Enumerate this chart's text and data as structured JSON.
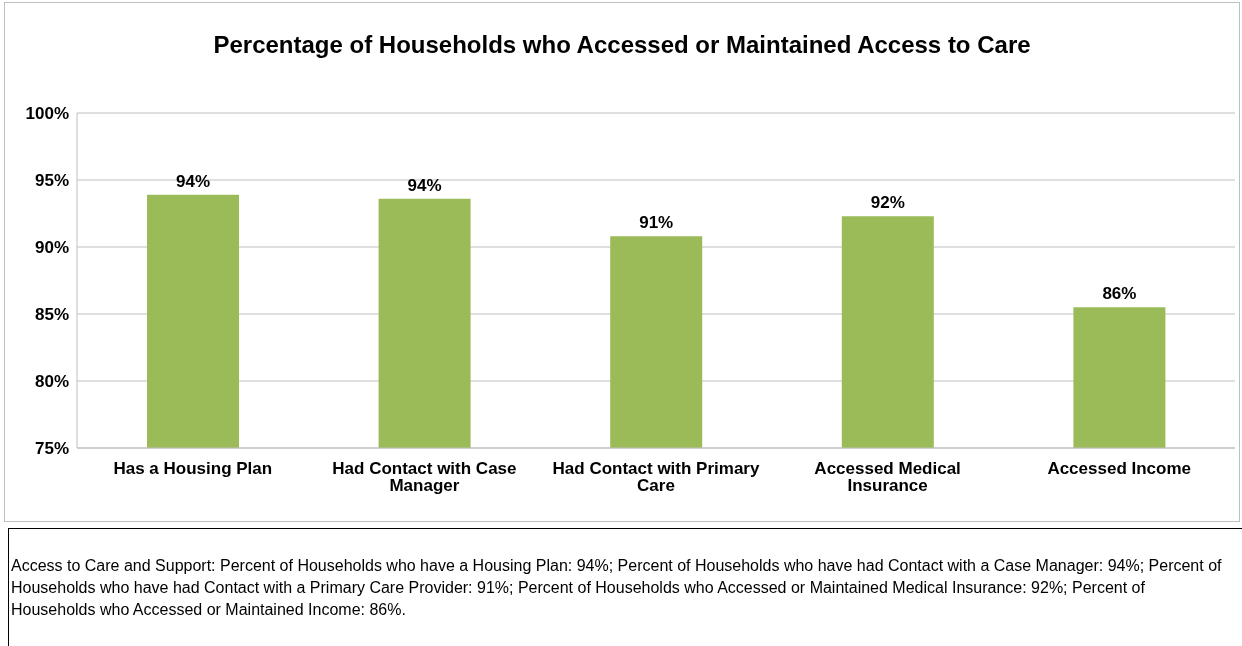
{
  "chart_data": {
    "type": "bar",
    "title": "Percentage of Households who Accessed or Maintained Access to Care",
    "categories": [
      "Has a Housing Plan",
      "Had Contact with Case Manager",
      "Had Contact with Primary Care",
      "Accessed Medical Insurance",
      "Accessed Income"
    ],
    "values": [
      93.9,
      93.6,
      90.8,
      92.3,
      85.5
    ],
    "value_labels": [
      "94%",
      "94%",
      "91%",
      "92%",
      "86%"
    ],
    "color": "#9bbb59",
    "ylim": [
      75,
      100
    ],
    "yticks": [
      {
        "value": 75,
        "label": "75%"
      },
      {
        "value": 80,
        "label": "80%"
      },
      {
        "value": 85,
        "label": "85%"
      },
      {
        "value": 90,
        "label": "90%"
      },
      {
        "value": 95,
        "label": "95%"
      },
      {
        "value": 100,
        "label": "100%"
      }
    ],
    "grid": "y",
    "annotations": [
      "Access to Care and Support: Percent of Households who have a Housing Plan: 94%; Percent of Households who have had Contact with a Case Manager: 94%; Percent of Households who have had Contact with a Primary Care Provider: 91%; Percent of Households who Accessed or Maintained Medical Insurance: 92%; Percent of Households who Accessed or Maintained Income: 86%."
    ]
  }
}
